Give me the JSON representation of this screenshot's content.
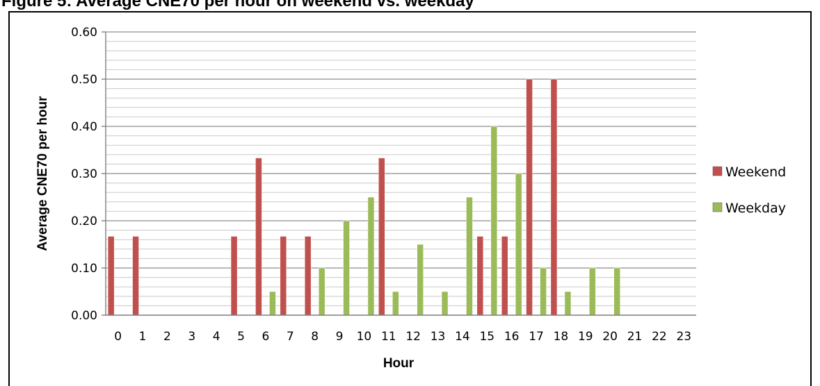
{
  "figure": {
    "caption": "Figure 5: Average CNE70 per hour on weekend vs. weekday"
  },
  "chart_data": {
    "type": "bar",
    "title": "",
    "xlabel": "Hour",
    "ylabel": "Average CNE70 per hour",
    "categories": [
      "0",
      "1",
      "2",
      "3",
      "4",
      "5",
      "6",
      "7",
      "8",
      "9",
      "10",
      "11",
      "12",
      "13",
      "14",
      "15",
      "16",
      "17",
      "18",
      "19",
      "20",
      "21",
      "22",
      "23"
    ],
    "series": [
      {
        "name": "Weekend",
        "color": "#c0504d",
        "values": [
          0.167,
          0.167,
          0,
          0,
          0,
          0.167,
          0.333,
          0.167,
          0.167,
          0,
          0,
          0.333,
          0,
          0,
          0,
          0.167,
          0.167,
          0.5,
          0.5,
          0,
          0,
          0,
          0,
          0
        ]
      },
      {
        "name": "Weekday",
        "color": "#9bbb59",
        "values": [
          0,
          0,
          0,
          0,
          0,
          0,
          0.05,
          0,
          0.1,
          0.2,
          0.25,
          0.05,
          0.15,
          0.05,
          0.25,
          0.4,
          0.3,
          0.1,
          0.05,
          0.1,
          0.1,
          0,
          0,
          0
        ]
      }
    ],
    "ylim": [
      0,
      0.6
    ],
    "yticks": [
      "0.00",
      "0.10",
      "0.20",
      "0.30",
      "0.40",
      "0.50",
      "0.60"
    ],
    "grid": true,
    "legend_position": "right"
  }
}
